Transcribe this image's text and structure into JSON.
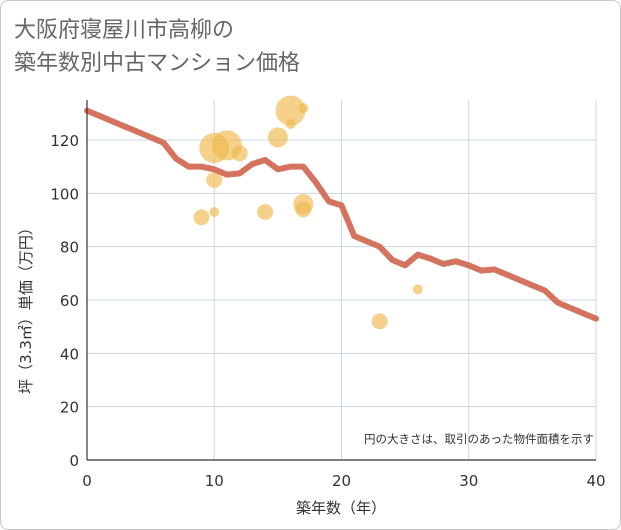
{
  "title_lines": [
    "大阪府寝屋川市高柳の",
    "築年数別中古マンション価格"
  ],
  "chart_data": {
    "type": "scatter",
    "xlabel": "築年数（年）",
    "ylabel": "坪（3.3㎡）単価（万円）",
    "xlim": [
      0,
      40
    ],
    "ylim": [
      0,
      135
    ],
    "xticks": [
      0,
      10,
      20,
      30,
      40
    ],
    "yticks": [
      0,
      20,
      40,
      60,
      80,
      100,
      120
    ],
    "grid": true,
    "note": "円の大きさは、取引のあった物件面積を示す",
    "colors": {
      "bubble": "#f0b94d",
      "line": "#d4735e",
      "grid": "#c8d7e4"
    },
    "bubbles": [
      {
        "x": 9,
        "y": 91,
        "size": 2
      },
      {
        "x": 10,
        "y": 117,
        "size": 5
      },
      {
        "x": 10,
        "y": 105,
        "size": 2
      },
      {
        "x": 10,
        "y": 93,
        "size": 1
      },
      {
        "x": 11,
        "y": 118,
        "size": 5
      },
      {
        "x": 12,
        "y": 115,
        "size": 2
      },
      {
        "x": 14,
        "y": 93,
        "size": 2
      },
      {
        "x": 15,
        "y": 121,
        "size": 3
      },
      {
        "x": 16,
        "y": 131,
        "size": 5
      },
      {
        "x": 16,
        "y": 126,
        "size": 1
      },
      {
        "x": 17,
        "y": 132,
        "size": 1
      },
      {
        "x": 17,
        "y": 96,
        "size": 3
      },
      {
        "x": 17,
        "y": 94,
        "size": 2
      },
      {
        "x": 23,
        "y": 52,
        "size": 2
      },
      {
        "x": 26,
        "y": 64,
        "size": 1
      }
    ],
    "trend_line": {
      "x": [
        0,
        6,
        7,
        8,
        9,
        10,
        11,
        12,
        13,
        14,
        15,
        16,
        17,
        18,
        19,
        20,
        21,
        22,
        23,
        24,
        25,
        26,
        27,
        28,
        29,
        30,
        31,
        32,
        33,
        34,
        35,
        36,
        37,
        38,
        39,
        40
      ],
      "y": [
        131,
        119,
        113,
        110,
        110,
        109,
        107,
        107.5,
        111,
        112.5,
        109,
        110,
        110,
        104,
        97,
        95.5,
        84,
        82,
        80,
        75,
        73,
        77,
        75.5,
        73.5,
        74.5,
        73,
        71,
        71.5,
        69.5,
        67.5,
        65.5,
        63.5,
        59,
        57,
        55,
        53
      ]
    }
  }
}
